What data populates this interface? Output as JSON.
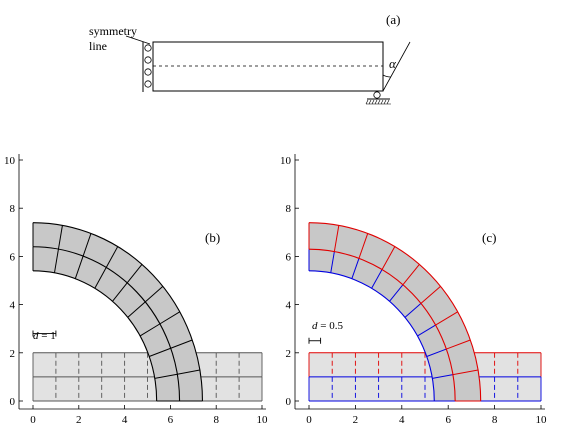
{
  "figure": {
    "panel_a": {
      "label": "(a)",
      "symmetry_label_line1": "symmetry",
      "symmetry_label_line2": "line",
      "angle_label": "α"
    },
    "panel_b": {
      "label": "(b)",
      "d_label": "d",
      "d_value_text": " = 1",
      "d_value": 1,
      "mesh": {
        "block_x": [
          0,
          10
        ],
        "block_y": [
          0,
          2
        ],
        "block_cols": 10,
        "block_rows": 2,
        "arc_r_inner": 5.4,
        "arc_r_outer": 7.4,
        "arc_segments": 9,
        "arc_rings": 2
      },
      "colors": {
        "block_line": "#555555",
        "arc_line": "#000000",
        "arc_fill": "#c8c8c8",
        "block_fill": "#e2e2e2"
      }
    },
    "panel_c": {
      "label": "(c)",
      "d_label": "d",
      "d_value_text": " = 0.5",
      "d_value": 0.5,
      "mesh": {
        "block_x": [
          0,
          10
        ],
        "block_y": [
          0,
          2
        ],
        "block_cols": 10,
        "block_rows": 2,
        "arc_r_inner": 5.4,
        "arc_r_mid": 6.3,
        "arc_r_outer": 7.4,
        "arc_segments": 9
      },
      "colors": {
        "upper_line": "#e00000",
        "lower_line": "#0000e0",
        "arc_fill": "#c8c8c8",
        "block_fill": "#e2e2e2"
      }
    },
    "axes": {
      "xlim": [
        0,
        10
      ],
      "ylim": [
        0,
        10
      ],
      "xticks": [
        "0",
        "2",
        "4",
        "6",
        "8",
        "10"
      ],
      "yticks": [
        "0",
        "2",
        "4",
        "6",
        "8",
        "10"
      ]
    }
  }
}
